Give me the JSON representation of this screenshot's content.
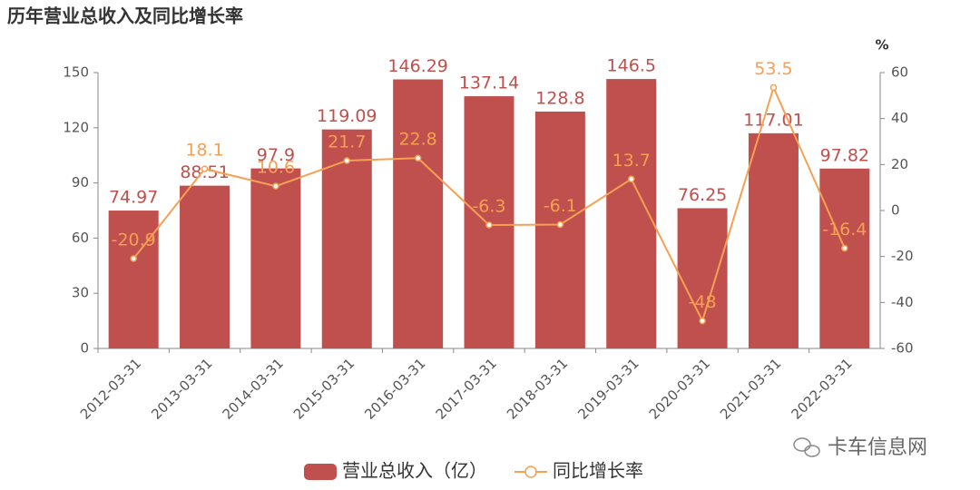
{
  "chart_data": {
    "type": "bar",
    "title": "历年营业总收入及同比增长率",
    "categories": [
      "2012-03-31",
      "2013-03-31",
      "2014-03-31",
      "2015-03-31",
      "2016-03-31",
      "2017-03-31",
      "2018-03-31",
      "2019-03-31",
      "2020-03-31",
      "2021-03-31",
      "2022-03-31"
    ],
    "series": [
      {
        "name": "营业总收入（亿）",
        "color": "#c0504d",
        "type": "bar",
        "values": [
          74.97,
          88.51,
          97.9,
          119.09,
          146.29,
          137.14,
          128.8,
          146.5,
          76.25,
          117.01,
          97.82
        ]
      },
      {
        "name": "同比增长率",
        "color": "#f5a053",
        "type": "line",
        "axis": "y2",
        "values": [
          -20.9,
          18.1,
          10.6,
          21.7,
          22.8,
          -6.3,
          -6.1,
          13.7,
          -48,
          53.5,
          -16.4
        ]
      }
    ],
    "ylim": [
      0,
      150
    ],
    "yticks": [
      0,
      30,
      60,
      90,
      120,
      150
    ],
    "y2lim": [
      -60,
      60
    ],
    "y2ticks": [
      -60,
      -40,
      -20,
      0,
      20,
      40,
      60
    ],
    "y2label": "%",
    "legend": "bottom",
    "watermark": "卡车信息网"
  }
}
